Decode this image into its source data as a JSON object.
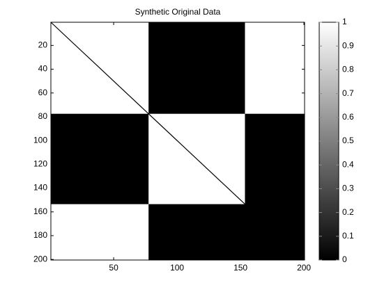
{
  "chart_data": {
    "type": "heatmap",
    "title": "Synthetic Original Data",
    "groups": [
      {
        "start": 1,
        "end": 77
      },
      {
        "start": 78,
        "end": 153
      },
      {
        "start": 154,
        "end": 200
      }
    ],
    "block_values": [
      [
        1,
        0,
        1
      ],
      [
        0,
        1,
        0
      ],
      [
        1,
        0,
        0
      ]
    ],
    "diagonal_value": 0,
    "colormap": "gray",
    "clim": [
      0,
      1
    ],
    "xlim": [
      0.5,
      200.5
    ],
    "ylim": [
      0.5,
      200.5
    ],
    "y_reversed": true,
    "xticks": [
      50,
      100,
      150,
      200
    ],
    "yticks": [
      20,
      40,
      60,
      80,
      100,
      120,
      140,
      160,
      180,
      200
    ],
    "colorbar_ticks": [
      0,
      0.1,
      0.2,
      0.3,
      0.4,
      0.5,
      0.6,
      0.7,
      0.8,
      0.9,
      1
    ]
  }
}
